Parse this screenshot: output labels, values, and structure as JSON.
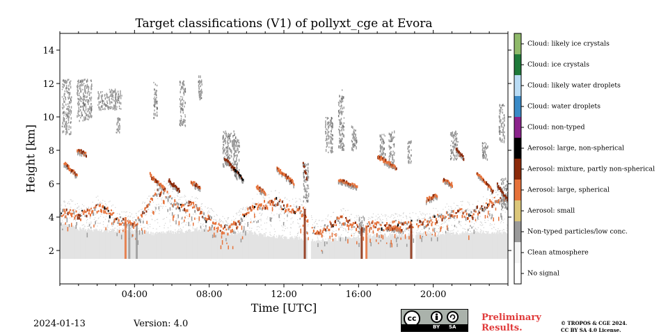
{
  "header": {
    "title": "Target classifications (V1) of pollyxt_cge at Evora"
  },
  "footer": {
    "date": "2024-01-13",
    "version": "Version: 4.0",
    "preliminary_line1": "Preliminary",
    "preliminary_line2": "Results.",
    "copyright_line1": "© TROPOS & CGE 2024.",
    "copyright_line2": "CC BY SA 4.0 License.",
    "cc_badge": {
      "cc": "cc",
      "by": "BY",
      "sa": "SA",
      "by_icon": "person-icon",
      "sa_icon": "share-alike-icon"
    }
  },
  "colors": {
    "clean_fill": "#e3e3e3",
    "grey": "#9a9a9a",
    "orange": "#e0702c",
    "brown": "#8b2a0a",
    "dark": "#3a0f05",
    "title_red": "#e03a3a"
  },
  "chart_data": {
    "type": "heatmap",
    "title": "Target classifications (V1) of pollyxt_cge at Evora",
    "xlabel": "Time [UTC]",
    "ylabel": "Height [km]",
    "xlim_hours": [
      0,
      24
    ],
    "ylim_km": [
      0,
      15
    ],
    "x_ticks": [
      {
        "value": 4,
        "label": "04:00"
      },
      {
        "value": 8,
        "label": "08:00"
      },
      {
        "value": 12,
        "label": "12:00"
      },
      {
        "value": 16,
        "label": "16:00"
      },
      {
        "value": 20,
        "label": "20:00"
      }
    ],
    "y_ticks": [
      {
        "value": 2,
        "label": "2"
      },
      {
        "value": 4,
        "label": "4"
      },
      {
        "value": 6,
        "label": "6"
      },
      {
        "value": 8,
        "label": "8"
      },
      {
        "value": 10,
        "label": "10"
      },
      {
        "value": 12,
        "label": "12"
      },
      {
        "value": 14,
        "label": "14"
      }
    ],
    "classes": [
      {
        "value": 0,
        "label": "No signal",
        "color": "#ffffff"
      },
      {
        "value": 1,
        "label": "Clean atmosphere",
        "color": "#f5f5f5"
      },
      {
        "value": 2,
        "label": "Non-typed particles/low conc.",
        "color": "#9a9a9a"
      },
      {
        "value": 3,
        "label": "Aerosol: small",
        "color": "#dcc77a"
      },
      {
        "value": 4,
        "label": "Aerosol: large, spherical",
        "color": "#e6723a"
      },
      {
        "value": 5,
        "label": "Aerosol: mixture, partly non-spherical",
        "color": "#8b2a0a"
      },
      {
        "value": 6,
        "label": "Aerosol: large, non-spherical",
        "color": "#000000"
      },
      {
        "value": 7,
        "label": "Cloud: non-typed",
        "color": "#8b238c"
      },
      {
        "value": 8,
        "label": "Cloud: water droplets",
        "color": "#3a8ac7"
      },
      {
        "value": 9,
        "label": "Cloud: likely water droplets",
        "color": "#b9dcf5"
      },
      {
        "value": 10,
        "label": "Cloud: ice crystals",
        "color": "#1f7a3a"
      },
      {
        "value": 11,
        "label": "Cloud: likely ice crystals",
        "color": "#8fba6a"
      }
    ],
    "clean_base_km": 1.5,
    "data_gaps_hours": [
      [
        13.25,
        13.45
      ],
      [
        16.2,
        16.38
      ],
      [
        18.9,
        19.05
      ]
    ],
    "clean_top_km": [
      {
        "t": 0.0,
        "h": 3.6
      },
      {
        "t": 1.0,
        "h": 3.3
      },
      {
        "t": 2.0,
        "h": 3.2
      },
      {
        "t": 3.0,
        "h": 3.2
      },
      {
        "t": 4.0,
        "h": 3.1
      },
      {
        "t": 5.0,
        "h": 3.0
      },
      {
        "t": 6.0,
        "h": 3.1
      },
      {
        "t": 7.0,
        "h": 3.2
      },
      {
        "t": 8.0,
        "h": 3.3
      },
      {
        "t": 9.0,
        "h": 3.0
      },
      {
        "t": 10.0,
        "h": 3.1
      },
      {
        "t": 11.0,
        "h": 2.9
      },
      {
        "t": 12.0,
        "h": 2.8
      },
      {
        "t": 13.0,
        "h": 2.7
      },
      {
        "t": 14.0,
        "h": 2.6
      },
      {
        "t": 15.0,
        "h": 2.7
      },
      {
        "t": 16.0,
        "h": 2.8
      },
      {
        "t": 17.0,
        "h": 2.9
      },
      {
        "t": 18.0,
        "h": 2.9
      },
      {
        "t": 19.0,
        "h": 3.0
      },
      {
        "t": 20.0,
        "h": 3.0
      },
      {
        "t": 21.0,
        "h": 3.0
      },
      {
        "t": 22.0,
        "h": 3.1
      },
      {
        "t": 23.0,
        "h": 3.1
      },
      {
        "t": 24.0,
        "h": 3.1
      }
    ],
    "aerosol_layer_top_km": [
      {
        "t": 0.0,
        "h": 4.2
      },
      {
        "t": 0.5,
        "h": 4.3
      },
      {
        "t": 1.0,
        "h": 4.0
      },
      {
        "t": 1.5,
        "h": 4.3
      },
      {
        "t": 2.0,
        "h": 4.5
      },
      {
        "t": 2.5,
        "h": 4.4
      },
      {
        "t": 3.0,
        "h": 3.8
      },
      {
        "t": 3.5,
        "h": 3.6
      },
      {
        "t": 4.0,
        "h": 3.5
      },
      {
        "t": 4.5,
        "h": 4.3
      },
      {
        "t": 5.0,
        "h": 5.2
      },
      {
        "t": 5.5,
        "h": 5.6
      },
      {
        "t": 6.0,
        "h": 4.8
      },
      {
        "t": 6.5,
        "h": 4.5
      },
      {
        "t": 7.0,
        "h": 4.7
      },
      {
        "t": 7.5,
        "h": 4.2
      },
      {
        "t": 8.0,
        "h": 3.8
      },
      {
        "t": 8.5,
        "h": 3.3
      },
      {
        "t": 9.0,
        "h": 3.2
      },
      {
        "t": 9.5,
        "h": 3.6
      },
      {
        "t": 10.0,
        "h": 4.2
      },
      {
        "t": 10.5,
        "h": 4.6
      },
      {
        "t": 11.0,
        "h": 4.7
      },
      {
        "t": 11.5,
        "h": 4.9
      },
      {
        "t": 12.0,
        "h": 4.6
      },
      {
        "t": 12.5,
        "h": 4.4
      },
      {
        "t": 13.0,
        "h": 4.3
      },
      {
        "t": 13.5,
        "h": 3.2
      },
      {
        "t": 14.0,
        "h": 3.1
      },
      {
        "t": 14.5,
        "h": 3.5
      },
      {
        "t": 15.0,
        "h": 3.8
      },
      {
        "t": 15.5,
        "h": 3.6
      },
      {
        "t": 16.0,
        "h": 3.3
      },
      {
        "t": 16.5,
        "h": 3.6
      },
      {
        "t": 17.0,
        "h": 3.4
      },
      {
        "t": 17.5,
        "h": 3.4
      },
      {
        "t": 18.0,
        "h": 3.5
      },
      {
        "t": 18.5,
        "h": 3.5
      },
      {
        "t": 19.0,
        "h": 3.6
      },
      {
        "t": 19.5,
        "h": 3.6
      },
      {
        "t": 20.0,
        "h": 3.8
      },
      {
        "t": 20.5,
        "h": 4.0
      },
      {
        "t": 21.0,
        "h": 4.1
      },
      {
        "t": 21.5,
        "h": 4.2
      },
      {
        "t": 22.0,
        "h": 4.1
      },
      {
        "t": 22.5,
        "h": 4.5
      },
      {
        "t": 23.0,
        "h": 4.8
      },
      {
        "t": 23.5,
        "h": 5.0
      },
      {
        "t": 24.0,
        "h": 5.3
      }
    ],
    "elevated_layers": [
      {
        "t0": 0.2,
        "t1": 0.9,
        "h0": 7.3,
        "h1": 6.6,
        "cls": 4
      },
      {
        "t0": 0.9,
        "t1": 1.4,
        "h0": 8.1,
        "h1": 7.8,
        "cls": 4
      },
      {
        "t0": 4.8,
        "t1": 5.6,
        "h0": 6.6,
        "h1": 5.7,
        "cls": 4
      },
      {
        "t0": 5.8,
        "t1": 6.4,
        "h0": 6.3,
        "h1": 5.6,
        "cls": 5
      },
      {
        "t0": 7.0,
        "t1": 7.5,
        "h0": 6.2,
        "h1": 5.8,
        "cls": 4
      },
      {
        "t0": 8.8,
        "t1": 9.4,
        "h0": 7.6,
        "h1": 6.8,
        "cls": 5
      },
      {
        "t0": 9.3,
        "t1": 9.8,
        "h0": 7.0,
        "h1": 6.3,
        "cls": 6
      },
      {
        "t0": 10.5,
        "t1": 11.0,
        "h0": 5.9,
        "h1": 5.5,
        "cls": 4
      },
      {
        "t0": 11.6,
        "t1": 12.5,
        "h0": 7.0,
        "h1": 6.1,
        "cls": 4
      },
      {
        "t0": 13.0,
        "t1": 13.2,
        "h0": 7.3,
        "h1": 6.4,
        "cls": 5
      },
      {
        "t0": 14.9,
        "t1": 15.9,
        "h0": 6.3,
        "h1": 5.9,
        "cls": 4
      },
      {
        "t0": 17.0,
        "t1": 18.0,
        "h0": 7.7,
        "h1": 7.0,
        "cls": 4
      },
      {
        "t0": 17.5,
        "t1": 18.3,
        "h0": 3.5,
        "h1": 3.3,
        "cls": 4
      },
      {
        "t0": 19.6,
        "t1": 20.2,
        "h0": 5.1,
        "h1": 5.4,
        "cls": 4
      },
      {
        "t0": 20.5,
        "t1": 21.0,
        "h0": 6.3,
        "h1": 6.0,
        "cls": 4
      },
      {
        "t0": 21.2,
        "t1": 21.6,
        "h0": 8.1,
        "h1": 7.6,
        "cls": 5
      },
      {
        "t0": 22.3,
        "t1": 23.2,
        "h0": 6.7,
        "h1": 5.6,
        "cls": 4
      },
      {
        "t0": 23.4,
        "t1": 24.0,
        "h0": 6.0,
        "h1": 5.0,
        "cls": 5
      }
    ],
    "grey_patches": [
      {
        "t0": 0.1,
        "t1": 0.6,
        "h0": 9.0,
        "h1": 12.3
      },
      {
        "t0": 0.9,
        "t1": 1.7,
        "h0": 9.8,
        "h1": 12.3
      },
      {
        "t0": 2.0,
        "t1": 3.3,
        "h0": 10.5,
        "h1": 11.7
      },
      {
        "t0": 3.0,
        "t1": 3.2,
        "h0": 9.0,
        "h1": 10.0
      },
      {
        "t0": 5.0,
        "t1": 5.2,
        "h0": 10.0,
        "h1": 12.1
      },
      {
        "t0": 6.4,
        "t1": 6.7,
        "h0": 9.5,
        "h1": 12.2
      },
      {
        "t0": 7.4,
        "t1": 7.6,
        "h0": 11.0,
        "h1": 12.5
      },
      {
        "t0": 8.7,
        "t1": 9.4,
        "h0": 7.1,
        "h1": 9.2
      },
      {
        "t0": 9.3,
        "t1": 9.6,
        "h0": 6.3,
        "h1": 8.7
      },
      {
        "t0": 13.0,
        "t1": 13.3,
        "h0": 5.0,
        "h1": 7.3
      },
      {
        "t0": 14.2,
        "t1": 14.6,
        "h0": 7.9,
        "h1": 10.0
      },
      {
        "t0": 14.9,
        "t1": 15.2,
        "h0": 8.0,
        "h1": 11.7
      },
      {
        "t0": 15.6,
        "t1": 15.9,
        "h0": 8.0,
        "h1": 9.5
      },
      {
        "t0": 16.0,
        "t1": 16.3,
        "h0": 3.0,
        "h1": 4.1
      },
      {
        "t0": 17.1,
        "t1": 17.4,
        "h0": 7.5,
        "h1": 9.0
      },
      {
        "t0": 17.6,
        "t1": 17.9,
        "h0": 7.0,
        "h1": 9.2
      },
      {
        "t0": 18.6,
        "t1": 18.8,
        "h0": 7.2,
        "h1": 8.6
      },
      {
        "t0": 20.9,
        "t1": 21.3,
        "h0": 7.5,
        "h1": 9.2
      },
      {
        "t0": 22.6,
        "t1": 22.9,
        "h0": 7.5,
        "h1": 8.5
      },
      {
        "t0": 23.5,
        "t1": 23.8,
        "h0": 8.5,
        "h1": 10.8
      },
      {
        "t0": 23.6,
        "t1": 24.0,
        "h0": 4.5,
        "h1": 6.4
      }
    ],
    "vertical_streaks": [
      {
        "t": 3.5,
        "h0": 1.5,
        "h1": 4.0,
        "cls": 4
      },
      {
        "t": 3.7,
        "h0": 1.5,
        "h1": 3.6,
        "cls": 2
      },
      {
        "t": 4.1,
        "h0": 1.5,
        "h1": 3.5,
        "cls": 2
      },
      {
        "t": 13.1,
        "h0": 1.5,
        "h1": 4.5,
        "cls": 5
      },
      {
        "t": 16.15,
        "h0": 1.5,
        "h1": 3.4,
        "cls": 5
      },
      {
        "t": 16.4,
        "h0": 1.5,
        "h1": 3.5,
        "cls": 4
      },
      {
        "t": 18.8,
        "h0": 1.5,
        "h1": 3.6,
        "cls": 5
      }
    ]
  }
}
